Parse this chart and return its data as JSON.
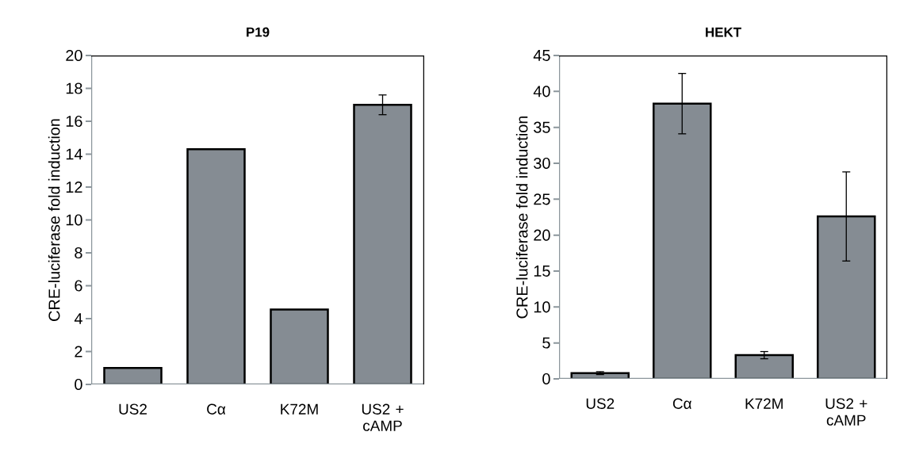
{
  "chart_data": [
    {
      "type": "bar",
      "title": "P19",
      "ylabel": "CRE-luciferase fold induction",
      "categories": [
        "US2",
        "Cα",
        "K72M",
        "US2 + cAMP"
      ],
      "values": [
        1.0,
        14.3,
        4.55,
        17.0
      ],
      "errors": [
        null,
        null,
        null,
        0.6
      ],
      "color": "#858c93",
      "ylim": [
        0,
        20
      ],
      "yticks": [
        0,
        2,
        4,
        6,
        8,
        10,
        12,
        14,
        16,
        18,
        20
      ]
    },
    {
      "type": "bar",
      "title": "HEKT",
      "ylabel": "CRE-luciferase fold induction",
      "categories": [
        "US2",
        "Cα",
        "K72M",
        "US2 + cAMP"
      ],
      "values": [
        0.8,
        38.3,
        3.3,
        22.6
      ],
      "errors": [
        0.2,
        4.2,
        0.5,
        6.2
      ],
      "color": "#858c93",
      "ylim": [
        0,
        45
      ],
      "yticks": [
        0,
        5,
        10,
        15,
        20,
        25,
        30,
        35,
        40,
        45
      ]
    }
  ]
}
